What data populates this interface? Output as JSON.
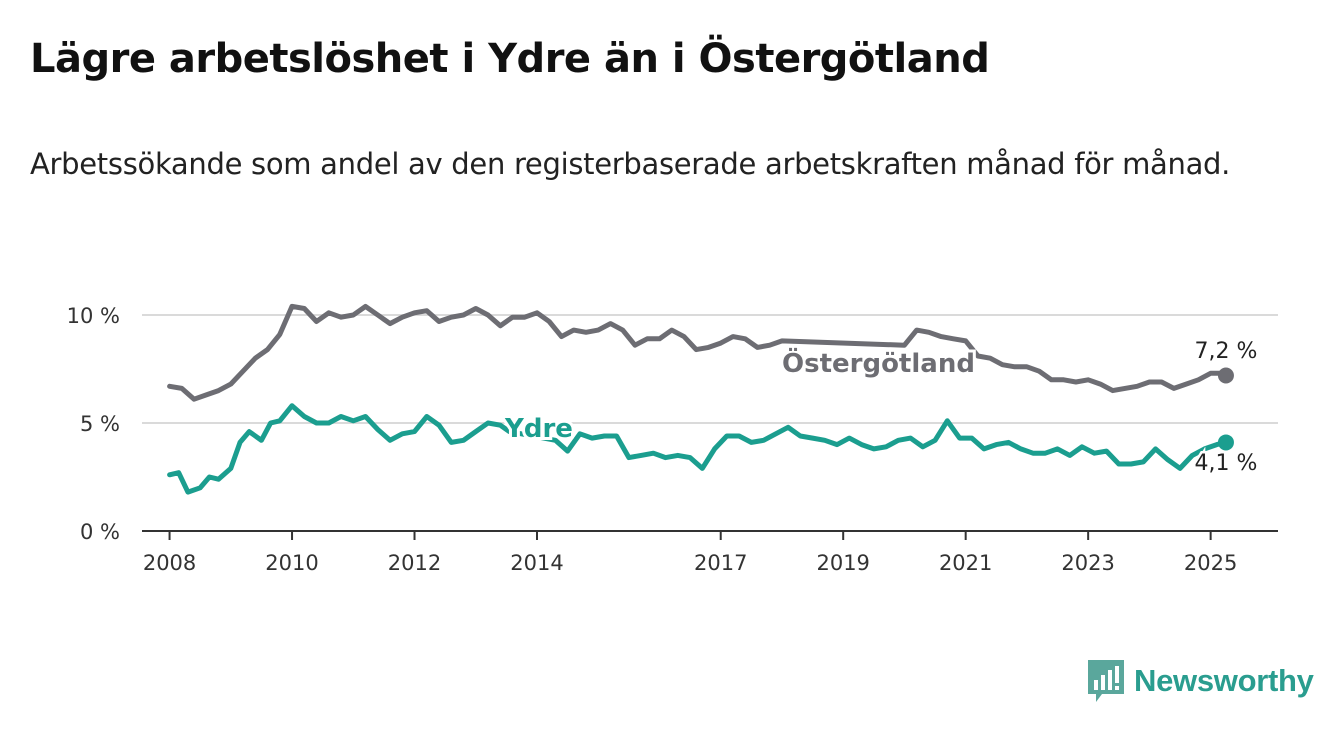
{
  "header": {
    "title": "Lägre arbetslöshet i Ydre än i Östergötland",
    "subtitle": "Arbetssökande som andel av den registerbaserade arbetskraften månad för månad."
  },
  "brand": {
    "name": "Newsworthy",
    "color": "#2a9d8f"
  },
  "chart_data": {
    "type": "line",
    "title": "Lägre arbetslöshet i Ydre än i Östergötland",
    "subtitle": "Arbetssökande som andel av den registerbaserade arbetskraften månad för månad.",
    "xlabel": "",
    "ylabel": "",
    "ylim": [
      0,
      10
    ],
    "y_ticks": [
      0,
      5,
      10
    ],
    "y_tick_labels": [
      "0 %",
      "5 %",
      "10 %"
    ],
    "x_range": [
      2007.55,
      2026.1
    ],
    "x_ticks": [
      2008,
      2010,
      2012,
      2014,
      2017,
      2019,
      2021,
      2023,
      2025
    ],
    "x_tick_labels": [
      "2008",
      "2010",
      "2012",
      "2014",
      "2017",
      "2019",
      "2021",
      "2023",
      "2025"
    ],
    "grid": true,
    "legend": "inline labels",
    "series": [
      {
        "name": "Östergötland",
        "color": "#6d6d73",
        "end_label": "7,2 %",
        "points": [
          [
            2008.0,
            6.7
          ],
          [
            2008.2,
            6.6
          ],
          [
            2008.4,
            6.1
          ],
          [
            2008.6,
            6.3
          ],
          [
            2008.8,
            6.5
          ],
          [
            2009.0,
            6.8
          ],
          [
            2009.2,
            7.4
          ],
          [
            2009.4,
            8.0
          ],
          [
            2009.6,
            8.4
          ],
          [
            2009.8,
            9.1
          ],
          [
            2010.0,
            10.4
          ],
          [
            2010.2,
            10.3
          ],
          [
            2010.4,
            9.7
          ],
          [
            2010.6,
            10.1
          ],
          [
            2010.8,
            9.9
          ],
          [
            2011.0,
            10.0
          ],
          [
            2011.2,
            10.4
          ],
          [
            2011.4,
            10.0
          ],
          [
            2011.6,
            9.6
          ],
          [
            2011.8,
            9.9
          ],
          [
            2012.0,
            10.1
          ],
          [
            2012.2,
            10.2
          ],
          [
            2012.4,
            9.7
          ],
          [
            2012.6,
            9.9
          ],
          [
            2012.8,
            10.0
          ],
          [
            2013.0,
            10.3
          ],
          [
            2013.2,
            10.0
          ],
          [
            2013.4,
            9.5
          ],
          [
            2013.6,
            9.9
          ],
          [
            2013.8,
            9.9
          ],
          [
            2014.0,
            10.1
          ],
          [
            2014.2,
            9.7
          ],
          [
            2014.4,
            9.0
          ],
          [
            2014.6,
            9.3
          ],
          [
            2014.8,
            9.2
          ],
          [
            2015.0,
            9.3
          ],
          [
            2015.2,
            9.6
          ],
          [
            2015.4,
            9.3
          ],
          [
            2015.6,
            8.6
          ],
          [
            2015.8,
            8.9
          ],
          [
            2016.0,
            8.9
          ],
          [
            2016.2,
            9.3
          ],
          [
            2016.4,
            9.0
          ],
          [
            2016.6,
            8.4
          ],
          [
            2016.8,
            8.5
          ],
          [
            2017.0,
            8.7
          ],
          [
            2017.2,
            9.0
          ],
          [
            2017.4,
            8.9
          ],
          [
            2017.6,
            8.5
          ],
          [
            2017.8,
            8.6
          ],
          [
            2018.0,
            8.8
          ],
          [
            2020.0,
            8.6
          ],
          [
            2020.2,
            9.3
          ],
          [
            2020.4,
            9.2
          ],
          [
            2020.6,
            9.0
          ],
          [
            2020.8,
            8.9
          ],
          [
            2021.0,
            8.8
          ],
          [
            2021.2,
            8.1
          ],
          [
            2021.4,
            8.0
          ],
          [
            2021.6,
            7.7
          ],
          [
            2021.8,
            7.6
          ],
          [
            2022.0,
            7.6
          ],
          [
            2022.2,
            7.4
          ],
          [
            2022.4,
            7.0
          ],
          [
            2022.6,
            7.0
          ],
          [
            2022.8,
            6.9
          ],
          [
            2023.0,
            7.0
          ],
          [
            2023.2,
            6.8
          ],
          [
            2023.4,
            6.5
          ],
          [
            2023.6,
            6.6
          ],
          [
            2023.8,
            6.7
          ],
          [
            2024.0,
            6.9
          ],
          [
            2024.2,
            6.9
          ],
          [
            2024.4,
            6.6
          ],
          [
            2024.6,
            6.8
          ],
          [
            2024.8,
            7.0
          ],
          [
            2025.0,
            7.3
          ],
          [
            2025.2,
            7.3
          ],
          [
            2025.25,
            7.2
          ]
        ]
      },
      {
        "name": "Ydre",
        "color": "#1b9e8f",
        "end_label": "4,1 %",
        "points": [
          [
            2008.0,
            2.6
          ],
          [
            2008.15,
            2.7
          ],
          [
            2008.3,
            1.8
          ],
          [
            2008.5,
            2.0
          ],
          [
            2008.65,
            2.5
          ],
          [
            2008.8,
            2.4
          ],
          [
            2009.0,
            2.9
          ],
          [
            2009.15,
            4.1
          ],
          [
            2009.3,
            4.6
          ],
          [
            2009.5,
            4.2
          ],
          [
            2009.65,
            5.0
          ],
          [
            2009.8,
            5.1
          ],
          [
            2010.0,
            5.8
          ],
          [
            2010.2,
            5.3
          ],
          [
            2010.4,
            5.0
          ],
          [
            2010.6,
            5.0
          ],
          [
            2010.8,
            5.3
          ],
          [
            2011.0,
            5.1
          ],
          [
            2011.2,
            5.3
          ],
          [
            2011.4,
            4.7
          ],
          [
            2011.6,
            4.2
          ],
          [
            2011.8,
            4.5
          ],
          [
            2012.0,
            4.6
          ],
          [
            2012.2,
            5.3
          ],
          [
            2012.4,
            4.9
          ],
          [
            2012.6,
            4.1
          ],
          [
            2012.8,
            4.2
          ],
          [
            2013.0,
            4.6
          ],
          [
            2013.2,
            5.0
          ],
          [
            2013.4,
            4.9
          ],
          [
            2013.55,
            4.6
          ],
          [
            2014.3,
            4.2
          ],
          [
            2014.5,
            3.7
          ],
          [
            2014.7,
            4.5
          ],
          [
            2014.9,
            4.3
          ],
          [
            2015.1,
            4.4
          ],
          [
            2015.3,
            4.4
          ],
          [
            2015.5,
            3.4
          ],
          [
            2015.7,
            3.5
          ],
          [
            2015.9,
            3.6
          ],
          [
            2016.1,
            3.4
          ],
          [
            2016.3,
            3.5
          ],
          [
            2016.5,
            3.4
          ],
          [
            2016.7,
            2.9
          ],
          [
            2016.9,
            3.8
          ],
          [
            2017.1,
            4.4
          ],
          [
            2017.3,
            4.4
          ],
          [
            2017.5,
            4.1
          ],
          [
            2017.7,
            4.2
          ],
          [
            2017.9,
            4.5
          ],
          [
            2018.1,
            4.8
          ],
          [
            2018.3,
            4.4
          ],
          [
            2018.5,
            4.3
          ],
          [
            2018.7,
            4.2
          ],
          [
            2018.9,
            4.0
          ],
          [
            2019.1,
            4.3
          ],
          [
            2019.3,
            4.0
          ],
          [
            2019.5,
            3.8
          ],
          [
            2019.7,
            3.9
          ],
          [
            2019.9,
            4.2
          ],
          [
            2020.1,
            4.3
          ],
          [
            2020.3,
            3.9
          ],
          [
            2020.5,
            4.2
          ],
          [
            2020.7,
            5.1
          ],
          [
            2020.9,
            4.3
          ],
          [
            2021.1,
            4.3
          ],
          [
            2021.3,
            3.8
          ],
          [
            2021.5,
            4.0
          ],
          [
            2021.7,
            4.1
          ],
          [
            2021.9,
            3.8
          ],
          [
            2022.1,
            3.6
          ],
          [
            2022.3,
            3.6
          ],
          [
            2022.5,
            3.8
          ],
          [
            2022.7,
            3.5
          ],
          [
            2022.9,
            3.9
          ],
          [
            2023.1,
            3.6
          ],
          [
            2023.3,
            3.7
          ],
          [
            2023.5,
            3.1
          ],
          [
            2023.7,
            3.1
          ],
          [
            2023.9,
            3.2
          ],
          [
            2024.1,
            3.8
          ],
          [
            2024.3,
            3.3
          ],
          [
            2024.5,
            2.9
          ],
          [
            2024.7,
            3.5
          ],
          [
            2024.9,
            3.8
          ],
          [
            2025.1,
            4.0
          ],
          [
            2025.25,
            4.1
          ]
        ]
      }
    ]
  }
}
